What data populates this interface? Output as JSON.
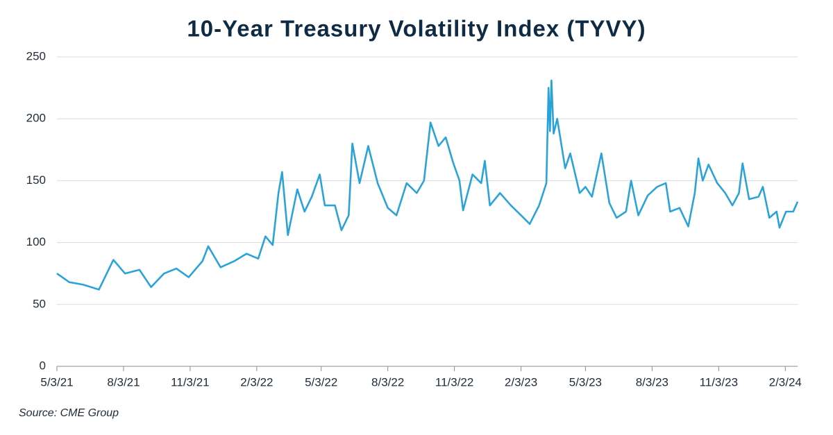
{
  "chart_data": {
    "type": "line",
    "title": "10-Year Treasury Volatility Index (TYVY)",
    "source": "Source: CME Group",
    "x": [
      "5/3/21",
      "5/20/21",
      "6/8/21",
      "6/30/21",
      "7/20/21",
      "8/5/21",
      "8/25/21",
      "9/10/21",
      "9/28/21",
      "10/15/21",
      "11/1/21",
      "11/20/21",
      "11/28/21",
      "12/15/21",
      "1/3/22",
      "1/20/22",
      "2/5/22",
      "2/15/22",
      "2/25/22",
      "3/5/22",
      "3/10/22",
      "3/18/22",
      "3/31/22",
      "4/10/22",
      "4/20/22",
      "5/1/22",
      "5/8/22",
      "5/22/22",
      "5/31/22",
      "6/10/22",
      "6/15/22",
      "6/25/22",
      "7/7/22",
      "7/20/22",
      "8/3/22",
      "8/15/22",
      "8/29/22",
      "9/12/22",
      "9/22/22",
      "10/1/22",
      "10/12/22",
      "10/22/22",
      "11/1/22",
      "11/10/22",
      "11/15/22",
      "11/28/22",
      "12/10/22",
      "12/15/22",
      "12/22/22",
      "1/5/23",
      "1/20/23",
      "2/3/23",
      "2/15/23",
      "2/28/23",
      "3/10/23",
      "3/13/23",
      "3/15/23",
      "3/17/23",
      "3/20/23",
      "3/25/23",
      "4/5/23",
      "4/12/23",
      "4/25/23",
      "5/3/23",
      "5/12/23",
      "5/25/23",
      "6/5/23",
      "6/15/23",
      "6/28/23",
      "7/5/23",
      "7/15/23",
      "7/28/23",
      "8/10/23",
      "8/22/23",
      "8/28/23",
      "9/10/23",
      "9/22/23",
      "10/1/23",
      "10/6/23",
      "10/12/23",
      "10/20/23",
      "11/1/23",
      "11/12/23",
      "11/22/23",
      "12/1/23",
      "12/6/23",
      "12/15/23",
      "12/28/23",
      "1/3/24",
      "1/12/24",
      "1/22/24",
      "1/26/24",
      "2/4/24",
      "2/14/24",
      "2/20/24"
    ],
    "series": [
      {
        "name": "TYVY",
        "color": "#2ba3d8",
        "values": [
          75,
          68,
          66,
          62,
          86,
          75,
          78,
          64,
          75,
          79,
          72,
          85,
          97,
          80,
          85,
          91,
          87,
          105,
          98,
          140,
          157,
          106,
          143,
          125,
          137,
          155,
          130,
          130,
          110,
          122,
          180,
          148,
          178,
          148,
          128,
          122,
          148,
          140,
          150,
          197,
          178,
          185,
          165,
          150,
          126,
          155,
          148,
          166,
          130,
          140,
          130,
          122,
          115,
          130,
          148,
          225,
          190,
          231,
          188,
          200,
          160,
          172,
          140,
          145,
          137,
          172,
          132,
          120,
          125,
          150,
          122,
          138,
          145,
          148,
          125,
          128,
          113,
          140,
          168,
          150,
          163,
          148,
          140,
          130,
          140,
          164,
          135,
          137,
          145,
          120,
          125,
          112,
          125,
          125,
          133
        ]
      }
    ],
    "xlim": [
      "5/3/21",
      "2/20/24"
    ],
    "xticks": [
      "5/3/21",
      "8/3/21",
      "11/3/21",
      "2/3/22",
      "5/3/22",
      "8/3/22",
      "11/3/22",
      "2/3/23",
      "5/3/23",
      "8/3/23",
      "11/3/23",
      "2/3/24"
    ],
    "ylim": [
      0,
      250
    ],
    "yticks": [
      0,
      50,
      100,
      150,
      200,
      250
    ],
    "grid": true
  }
}
